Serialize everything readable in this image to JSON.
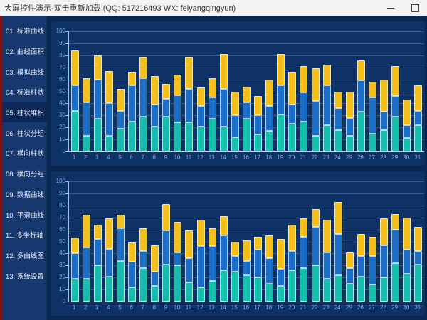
{
  "window": {
    "title": "大屏控件演示-双击重新加载 (QQ: 517216493  WX: feiyangqingyun)",
    "controls": {
      "minimize": "minimize",
      "maximize": "maximize"
    }
  },
  "colors": {
    "titlebar_bg": "#f3f3f3",
    "app_bg": "#0a2750",
    "sidebar_bg": "#17386f",
    "sidebar_selected_bg": "#0b2857",
    "left_accent": "#7c1214",
    "panel_bg": "#0e3166",
    "axis_label": "#7fb2e5",
    "series_teal": "#14BFAD",
    "series_blue": "#1A6EC8",
    "series_yellow": "#F5C01B"
  },
  "sidebar": {
    "selected_index": 4,
    "items": [
      {
        "label": "01. 标准曲线"
      },
      {
        "label": "02. 曲线面积"
      },
      {
        "label": "03. 模拟曲线"
      },
      {
        "label": "04. 标准柱状"
      },
      {
        "label": "05. 柱状堆积"
      },
      {
        "label": "06. 柱状分组"
      },
      {
        "label": "07. 横向柱状"
      },
      {
        "label": "08. 横向分组"
      },
      {
        "label": "09. 数据曲线"
      },
      {
        "label": "10. 平滑曲线"
      },
      {
        "label": "11. 多坐标轴"
      },
      {
        "label": "12. 多曲线图"
      },
      {
        "label": "13. 系统设置"
      }
    ]
  },
  "chart_data": [
    {
      "type": "bar",
      "stacked": true,
      "title": "",
      "xlabel": "",
      "ylabel": "",
      "ylim": [
        0,
        100
      ],
      "ytick_step": 10,
      "grid": "horizontal",
      "legend": "none",
      "categories": [
        1,
        2,
        3,
        4,
        5,
        6,
        7,
        8,
        9,
        10,
        11,
        12,
        13,
        14,
        15,
        16,
        17,
        18,
        19,
        20,
        21,
        22,
        23,
        24,
        25,
        26,
        27,
        28,
        29,
        30,
        31
      ],
      "series": [
        {
          "name": "teal",
          "color": "#14BFAD",
          "values": [
            34,
            13,
            27,
            13,
            19,
            25,
            29,
            21,
            29,
            24,
            24,
            21,
            27,
            21,
            12,
            27,
            14,
            17,
            31,
            23,
            25,
            13,
            22,
            18,
            13,
            33,
            15,
            18,
            29,
            11,
            22
          ]
        },
        {
          "name": "blue",
          "color": "#1A6EC8",
          "values": [
            21,
            28,
            33,
            27,
            15,
            30,
            32,
            18,
            15,
            23,
            28,
            17,
            18,
            31,
            18,
            14,
            16,
            21,
            24,
            16,
            24,
            29,
            33,
            18,
            15,
            26,
            30,
            15,
            17,
            11,
            12
          ]
        },
        {
          "name": "yellow",
          "color": "#F5C01B",
          "values": [
            29,
            20,
            20,
            27,
            18,
            11,
            18,
            24,
            12,
            17,
            27,
            15,
            16,
            29,
            20,
            13,
            16,
            22,
            26,
            27,
            22,
            27,
            17,
            14,
            22,
            17,
            13,
            27,
            25,
            21,
            21
          ]
        }
      ]
    },
    {
      "type": "bar",
      "stacked": true,
      "title": "",
      "xlabel": "",
      "ylabel": "",
      "ylim": [
        0,
        100
      ],
      "ytick_step": 10,
      "grid": "horizontal",
      "legend": "none",
      "categories": [
        1,
        2,
        3,
        4,
        5,
        6,
        7,
        8,
        9,
        10,
        11,
        12,
        13,
        14,
        15,
        16,
        17,
        18,
        19,
        20,
        21,
        22,
        23,
        24,
        25,
        26,
        27,
        28,
        29,
        30,
        31
      ],
      "series": [
        {
          "name": "teal",
          "color": "#14BFAD",
          "values": [
            19,
            19,
            30,
            21,
            34,
            12,
            28,
            13,
            31,
            30,
            16,
            12,
            17,
            26,
            25,
            22,
            20,
            15,
            13,
            26,
            28,
            30,
            19,
            22,
            15,
            21,
            14,
            20,
            32,
            23,
            31
          ]
        },
        {
          "name": "blue",
          "color": "#1A6EC8",
          "values": [
            21,
            26,
            22,
            23,
            27,
            21,
            14,
            12,
            28,
            11,
            20,
            34,
            29,
            29,
            13,
            12,
            23,
            21,
            14,
            16,
            26,
            32,
            22,
            34,
            13,
            17,
            24,
            27,
            28,
            20,
            11
          ]
        },
        {
          "name": "yellow",
          "color": "#F5C01B",
          "values": [
            13,
            27,
            12,
            25,
            11,
            16,
            19,
            22,
            22,
            25,
            23,
            22,
            15,
            16,
            12,
            17,
            11,
            19,
            25,
            22,
            15,
            15,
            27,
            27,
            13,
            18,
            16,
            22,
            13,
            27,
            20
          ]
        }
      ]
    }
  ]
}
